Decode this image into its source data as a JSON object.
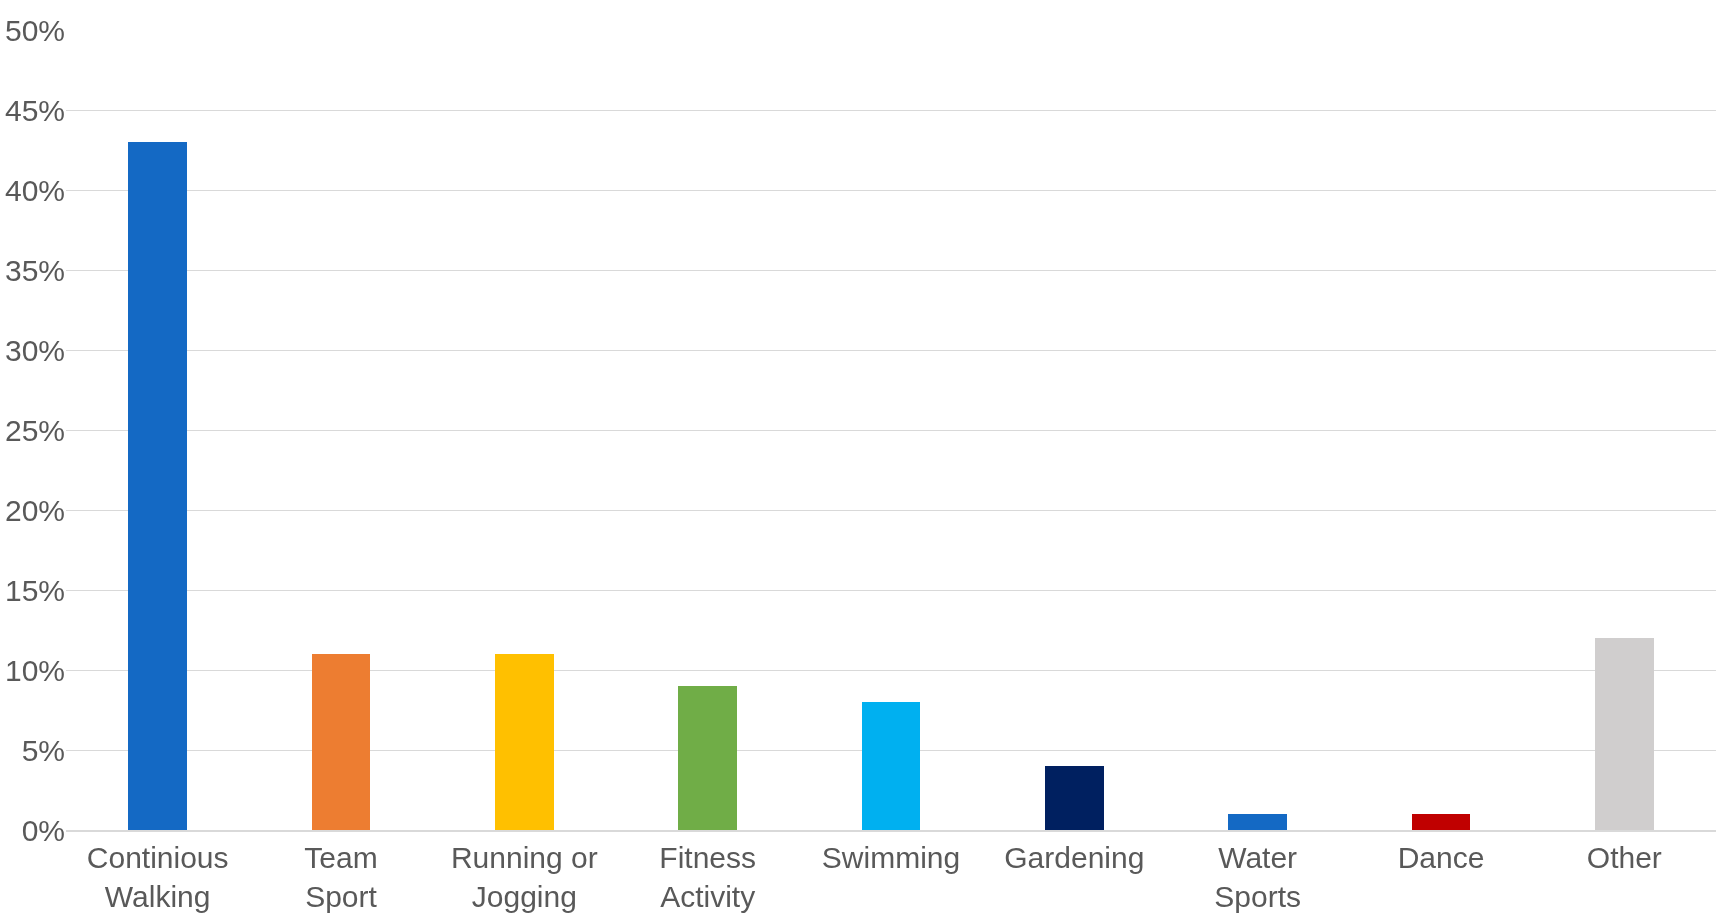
{
  "chart_data": {
    "type": "bar",
    "categories": [
      "Continious\nWalking",
      "Team\nSport",
      "Running or\nJogging",
      "Fitness\nActivity",
      "Swimming",
      "Gardening",
      "Water\nSports",
      "Dance",
      "Other"
    ],
    "values": [
      43,
      11,
      11,
      9,
      8,
      4,
      1,
      1,
      12
    ],
    "colors": [
      "#1469c4",
      "#ed7d31",
      "#ffc000",
      "#70ad47",
      "#00b0f0",
      "#002060",
      "#1469c4",
      "#c00000",
      "#d0cece"
    ],
    "ylim": [
      0,
      50
    ],
    "yticks": [
      {
        "value": 0,
        "label": "0%"
      },
      {
        "value": 5,
        "label": "5%"
      },
      {
        "value": 10,
        "label": "10%"
      },
      {
        "value": 15,
        "label": "15%"
      },
      {
        "value": 20,
        "label": "20%"
      },
      {
        "value": 25,
        "label": "25%"
      },
      {
        "value": 30,
        "label": "30%"
      },
      {
        "value": 35,
        "label": "35%"
      },
      {
        "value": 40,
        "label": "40%"
      },
      {
        "value": 45,
        "label": "45%"
      },
      {
        "value": 50,
        "label": "50%"
      }
    ],
    "grid": "y"
  }
}
